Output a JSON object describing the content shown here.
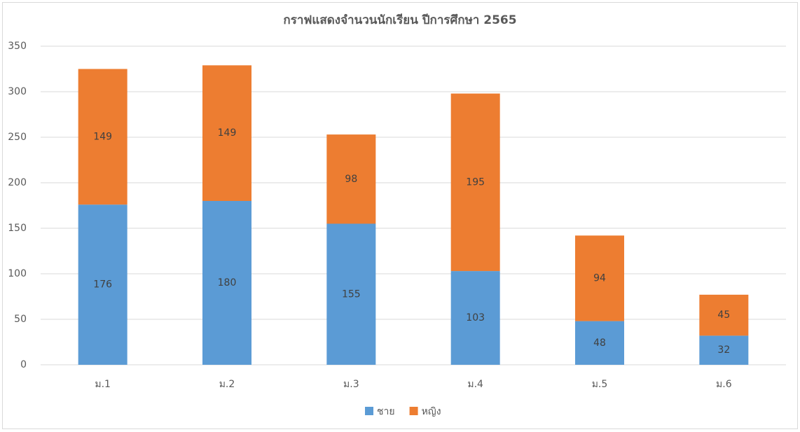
{
  "chart_data": {
    "type": "stacked_bar",
    "title": "กราฟแสดงจำนวนนักเรียน ปีการศึกษา 2565",
    "categories": [
      "ม.1",
      "ม.2",
      "ม.3",
      "ม.4",
      "ม.5",
      "ม.6"
    ],
    "series": [
      {
        "name": "ชาย",
        "color": "#5b9bd5",
        "values": [
          176,
          180,
          155,
          103,
          48,
          32
        ]
      },
      {
        "name": "หญิง",
        "color": "#ed7d31",
        "values": [
          149,
          149,
          98,
          195,
          94,
          45
        ]
      }
    ],
    "ylim": [
      0,
      350
    ],
    "yticks": [
      0,
      50,
      100,
      150,
      200,
      250,
      300,
      350
    ],
    "grid": true,
    "legend": "bottom"
  }
}
